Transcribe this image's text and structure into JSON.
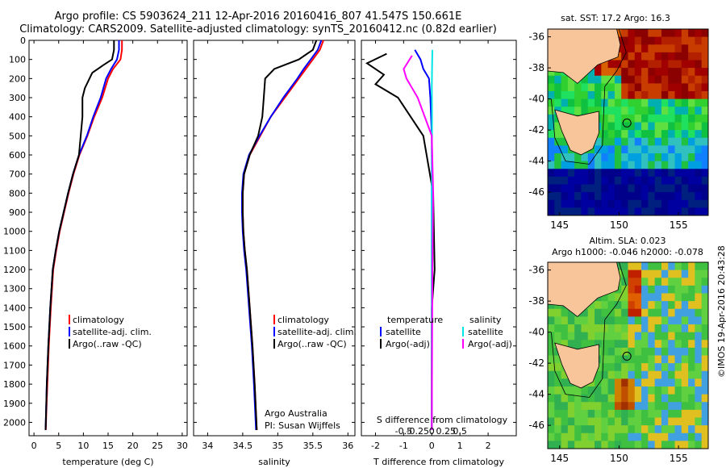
{
  "header": {
    "line1": "Argo profile: CS 5903624_211 12-Apr-2016 20160416_807 41.547S 150.661E",
    "line2": "Climatology: CARS2009. Satellite-adjusted climatology: synTS_20160412.nc (0.82d earlier)"
  },
  "credit": "©IMOS 19-Apr-2016 20:43:28",
  "colors": {
    "climatology": "#ff0000",
    "satellite": "#0000ff",
    "argo": "#000000",
    "sal_satellite": "#00e5e5",
    "sal_argo": "#ff00ff"
  },
  "chart_data": [
    {
      "type": "line",
      "panel": "temperature",
      "xlabel": "temperature (deg C)",
      "ylabel": "",
      "xlim": [
        -1,
        31
      ],
      "ylim": [
        2070,
        0
      ],
      "xticks": [
        0,
        5,
        10,
        15,
        20,
        25,
        30
      ],
      "yticks": [
        0,
        100,
        200,
        300,
        400,
        500,
        600,
        700,
        800,
        900,
        1000,
        1100,
        1200,
        1300,
        1400,
        1500,
        1600,
        1700,
        1800,
        1900,
        2000
      ],
      "legend": [
        "climatology",
        "satellite-adj. clim.",
        "Argo(..raw -QC)"
      ],
      "series": [
        {
          "name": "climatology",
          "color": "#ff0000",
          "x": [
            17.8,
            17.8,
            17.5,
            16.0,
            15.0,
            13.8,
            12.2,
            10.8,
            9.2,
            8.0,
            7.0,
            6.1,
            5.2,
            4.5,
            3.9,
            3.4,
            3.0,
            2.7,
            2.5,
            2.4
          ],
          "y": [
            0,
            50,
            100,
            150,
            200,
            300,
            400,
            500,
            600,
            700,
            800,
            900,
            1000,
            1100,
            1200,
            1400,
            1600,
            1800,
            1950,
            2040
          ]
        },
        {
          "name": "satellite-adj. clim.",
          "color": "#0000ff",
          "x": [
            17.2,
            17.2,
            16.8,
            15.6,
            14.6,
            13.5,
            12.0,
            10.7,
            9.1,
            7.9,
            6.9,
            6.0,
            5.1,
            4.4,
            3.8,
            3.3,
            2.9,
            2.6,
            2.45,
            2.35
          ],
          "y": [
            0,
            50,
            100,
            150,
            200,
            300,
            400,
            500,
            600,
            700,
            800,
            900,
            1000,
            1100,
            1200,
            1400,
            1600,
            1800,
            1950,
            2040
          ]
        },
        {
          "name": "Argo(..raw -QC)",
          "color": "#000000",
          "x": [
            16.2,
            16.2,
            15.8,
            14.0,
            11.8,
            10.3,
            9.8,
            9.8,
            9.1,
            7.9,
            6.9,
            6.0,
            5.1,
            4.4,
            3.8,
            3.3,
            2.9,
            2.6,
            2.45,
            2.35
          ],
          "y": [
            0,
            50,
            100,
            130,
            170,
            250,
            300,
            400,
            600,
            700,
            800,
            900,
            1000,
            1100,
            1200,
            1400,
            1600,
            1800,
            1950,
            2040
          ]
        }
      ]
    },
    {
      "type": "line",
      "panel": "salinity",
      "xlabel": "salinity",
      "xlim": [
        33.8,
        36.1
      ],
      "ylim": [
        2070,
        0
      ],
      "xticks": [
        34,
        34.5,
        35,
        35.5,
        36
      ],
      "legend": [
        "climatology",
        "satellite-adj. clim.",
        "Argo(..raw -QC)"
      ],
      "annotation": [
        "Argo Australia",
        "PI: Susan Wijffels"
      ],
      "series": [
        {
          "name": "climatology",
          "color": "#ff0000",
          "x": [
            35.65,
            35.6,
            35.5,
            35.4,
            35.3,
            35.1,
            34.9,
            34.75,
            34.6,
            34.52,
            34.5,
            34.5,
            34.51,
            34.53,
            34.56,
            34.6,
            34.64,
            34.67,
            34.7
          ],
          "y": [
            0,
            50,
            100,
            150,
            200,
            300,
            400,
            500,
            600,
            700,
            800,
            900,
            1000,
            1100,
            1200,
            1400,
            1600,
            1800,
            2040
          ]
        },
        {
          "name": "satellite-adj. clim.",
          "color": "#0000ff",
          "x": [
            35.62,
            35.57,
            35.47,
            35.37,
            35.28,
            35.08,
            34.9,
            34.74,
            34.59,
            34.51,
            34.49,
            34.49,
            34.5,
            34.52,
            34.55,
            34.59,
            34.63,
            34.66,
            34.69
          ],
          "y": [
            0,
            50,
            100,
            150,
            200,
            300,
            400,
            500,
            600,
            700,
            800,
            900,
            1000,
            1100,
            1200,
            1400,
            1600,
            1800,
            2040
          ]
        },
        {
          "name": "Argo(..raw -QC)",
          "color": "#000000",
          "x": [
            35.55,
            35.5,
            35.3,
            34.95,
            34.82,
            34.8,
            34.78,
            34.72,
            34.6,
            34.52,
            34.5,
            34.5,
            34.51,
            34.53,
            34.56,
            34.6,
            34.64,
            34.67,
            34.7
          ],
          "y": [
            0,
            50,
            100,
            150,
            200,
            300,
            400,
            500,
            600,
            700,
            800,
            900,
            1000,
            1100,
            1200,
            1400,
            1600,
            1800,
            2040
          ]
        }
      ]
    },
    {
      "type": "line",
      "panel": "difference",
      "xlabel": "T difference from climatology",
      "xlabel_top": "S difference from climatology",
      "xlim": [
        -2.5,
        3
      ],
      "ylim": [
        2070,
        0
      ],
      "xticks": [
        -2,
        -1,
        0,
        1,
        2
      ],
      "xticks_top": [
        -0.5,
        -0.25,
        0,
        0.25,
        0.5
      ],
      "legend_left_title": "temperature",
      "legend_right_title": "salinity",
      "legend": [
        "satellite",
        "Argo(-adj)",
        "satellite",
        "Argo(-adj)"
      ],
      "series": [
        {
          "name": "T satellite",
          "color": "#0000ff",
          "x": [
            -0.6,
            -0.4,
            -0.3,
            -0.1,
            -0.05,
            0,
            0,
            0,
            0,
            0
          ],
          "y": [
            50,
            100,
            150,
            200,
            300,
            500,
            800,
            1200,
            1600,
            2040
          ]
        },
        {
          "name": "T Argo(-adj)",
          "color": "#000000",
          "x": [
            -1.6,
            -2.3,
            -1.7,
            -2.0,
            -1.2,
            -0.3,
            0.05,
            0.1,
            0,
            0,
            0
          ],
          "y": [
            70,
            120,
            180,
            230,
            300,
            500,
            800,
            1200,
            1400,
            1700,
            2040
          ]
        },
        {
          "name": "S satellite",
          "color": "#00e5e5",
          "x": [
            0.02,
            0.01,
            0,
            0.01,
            0,
            0,
            0
          ],
          "y": [
            50,
            150,
            250,
            400,
            800,
            1200,
            2040
          ]
        },
        {
          "name": "S Argo(-adj)",
          "color": "#ff00ff",
          "x": [
            -0.7,
            -1.0,
            -0.9,
            -0.5,
            0,
            0.05,
            0.02,
            0
          ],
          "y": [
            80,
            150,
            200,
            300,
            500,
            800,
            1200,
            2040
          ]
        }
      ]
    },
    {
      "type": "heatmap",
      "panel": "map-sst",
      "title": "sat. SST: 17.2 Argo: 16.3",
      "xlim": [
        144,
        157.5
      ],
      "ylim": [
        -47.5,
        -35.5
      ],
      "xticks": [
        145,
        150,
        155
      ],
      "yticks": [
        -36,
        -38,
        -40,
        -42,
        -44,
        -46
      ],
      "argo_position": [
        150.661,
        -41.547
      ]
    },
    {
      "type": "heatmap",
      "panel": "map-sla",
      "title": [
        "Altim. SLA: 0.023",
        "Argo h1000: -0.046 h2000: -0.078"
      ],
      "xlim": [
        144,
        157.5
      ],
      "ylim": [
        -47.5,
        -35.5
      ],
      "xticks": [
        145,
        150,
        155
      ],
      "yticks": [
        -36,
        -38,
        -40,
        -42,
        -44,
        -46
      ],
      "argo_position": [
        150.661,
        -41.547
      ]
    }
  ]
}
